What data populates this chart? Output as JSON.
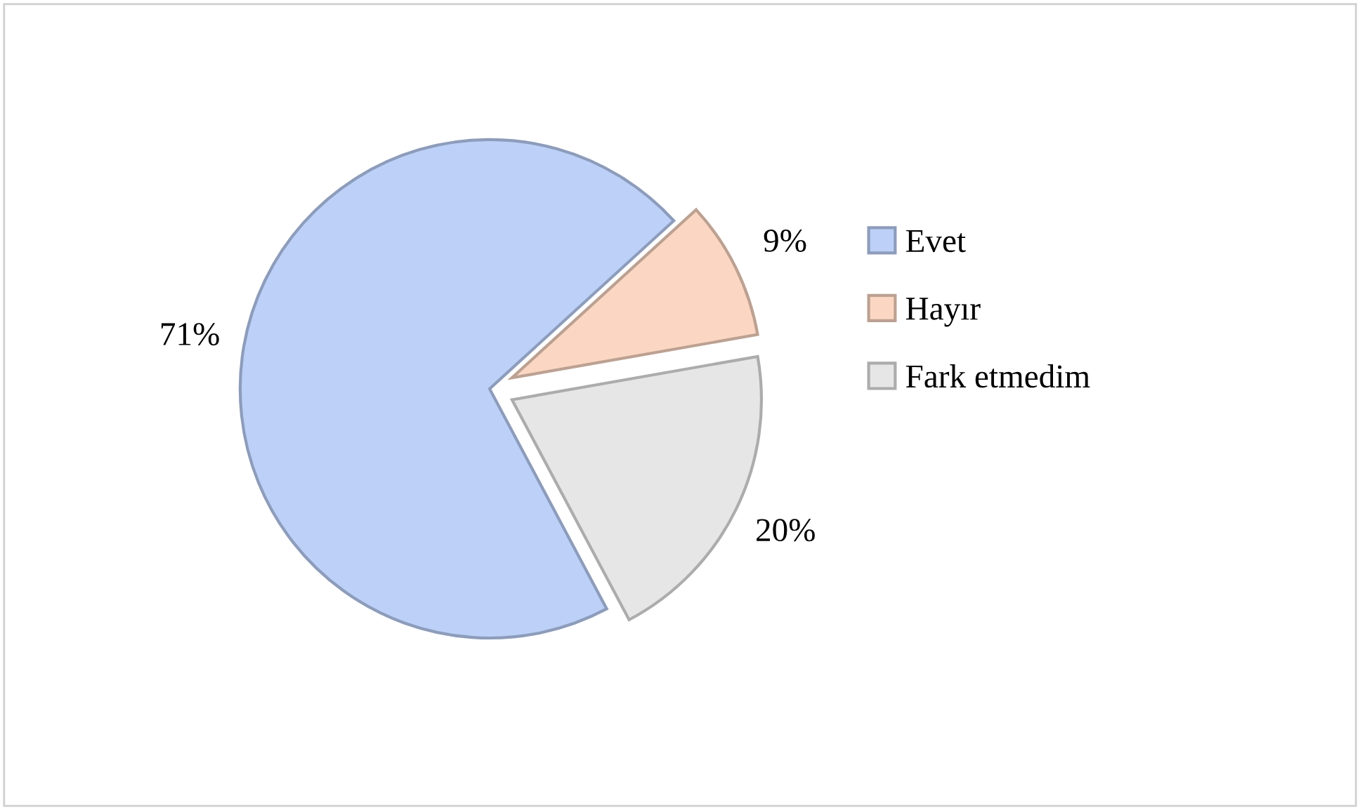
{
  "chart_data": {
    "type": "pie",
    "categories": [
      "Evet",
      "Hayır",
      "Fark etmedim"
    ],
    "values": [
      71,
      9,
      20
    ],
    "colors": [
      "#bcd0f8",
      "#fbd7c3",
      "#e6e6e6"
    ],
    "value_labels": [
      "71%",
      "9%",
      "20%"
    ],
    "legend": "right"
  }
}
